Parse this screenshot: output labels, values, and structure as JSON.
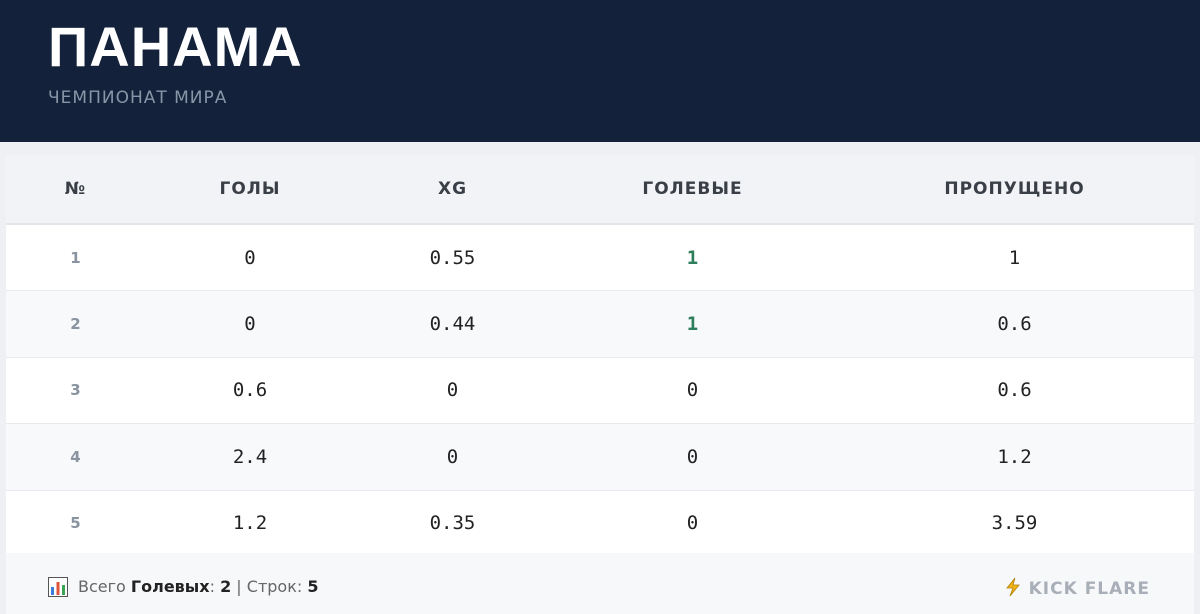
{
  "header": {
    "title": "ПАНАМА",
    "subtitle": "ЧЕМПИОНАТ МИРА"
  },
  "table": {
    "columns": [
      "№",
      "ГОЛЫ",
      "XG",
      "ГОЛЕВЫЕ",
      "ПРОПУЩЕНО"
    ],
    "rows": [
      [
        1,
        0,
        0.55,
        1,
        1
      ],
      [
        2,
        0,
        0.44,
        1,
        0.6
      ],
      [
        3,
        0.6,
        0,
        0,
        0.6
      ],
      [
        4,
        2.4,
        0,
        0,
        1.2
      ],
      [
        5,
        1.2,
        0.35,
        0,
        3.59
      ]
    ]
  },
  "footer": {
    "total_label": "Всего",
    "goals_label": "Голевых",
    "goals_colon": ":",
    "goals_value": 2,
    "separator": "|",
    "rows_label": "Строк:",
    "rows_value": 5,
    "brand": "KICK FLARE"
  }
}
